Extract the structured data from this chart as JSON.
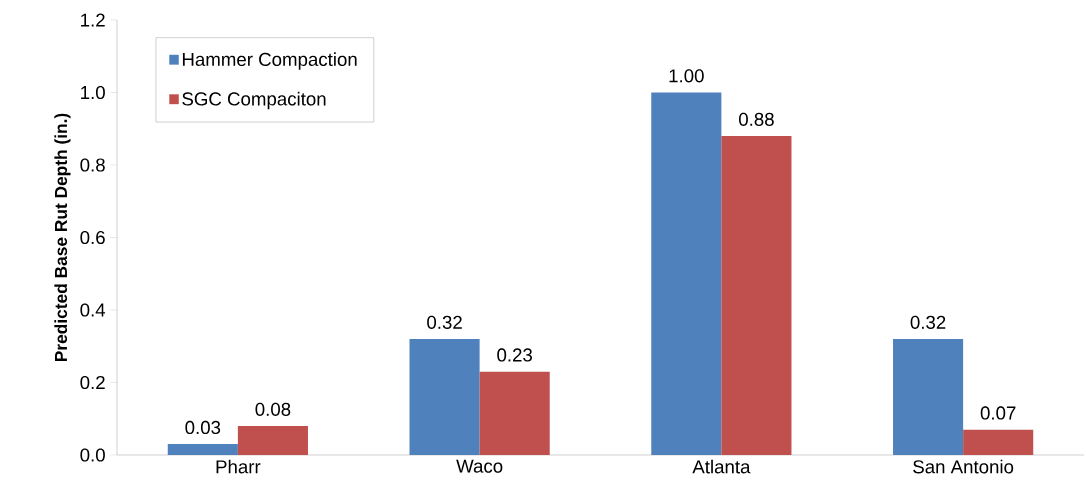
{
  "chart_data": {
    "type": "bar",
    "ylabel": "Predicted Base Rut Depth (in.)",
    "categories": [
      "Pharr",
      "Waco",
      "Atlanta",
      "San Antonio"
    ],
    "series": [
      {
        "name": "Hammer Compaction",
        "color": "#4f81bd",
        "values": [
          0.03,
          0.32,
          1.0,
          0.32
        ],
        "value_labels": [
          "0.03",
          "0.32",
          "1.00",
          "0.32"
        ]
      },
      {
        "name": "SGC Compaciton",
        "color": "#c0504d",
        "values": [
          0.08,
          0.23,
          0.88,
          0.07
        ],
        "value_labels": [
          "0.08",
          "0.23",
          "0.88",
          "0.07"
        ]
      }
    ],
    "ylim": [
      0,
      1.2
    ],
    "yticks": [
      {
        "value": 0,
        "label": "0.0"
      },
      {
        "value": 0.2,
        "label": "0.2"
      },
      {
        "value": 0.4,
        "label": "0.4"
      },
      {
        "value": 0.6,
        "label": "0.6"
      },
      {
        "value": 0.8,
        "label": "0.8"
      },
      {
        "value": 1.0,
        "label": "1.0"
      },
      {
        "value": 1.2,
        "label": "1.2"
      }
    ],
    "grid": false,
    "legend": "top left"
  }
}
